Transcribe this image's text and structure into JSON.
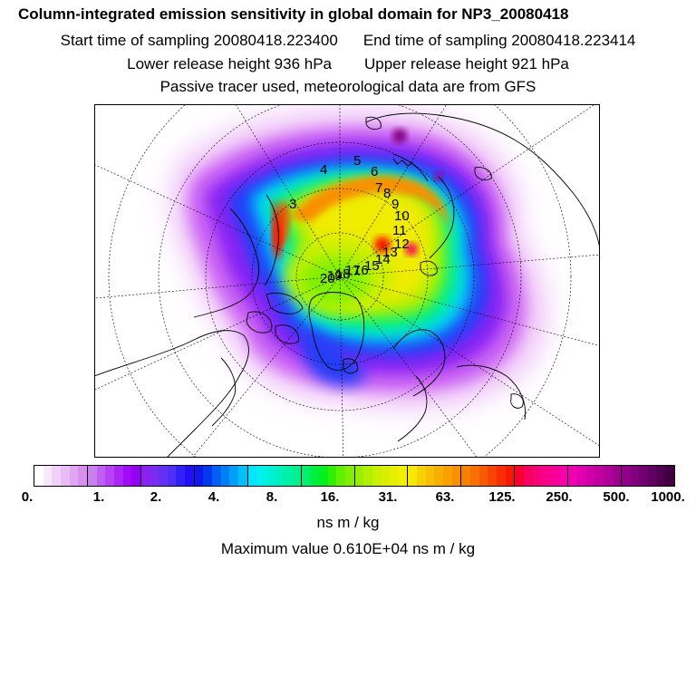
{
  "header": {
    "title": "Column-integrated emission sensitivity in global domain for NP3_20080418",
    "start_time": "Start time of sampling 20080418.223400",
    "end_time": "End time of sampling 20080418.223414",
    "lower_height": "Lower release height  936 hPa",
    "upper_height": "Upper release height  921 hPa",
    "tracer_note": "Passive tracer used, meteorological data are from GFS"
  },
  "map": {
    "projection": "north polar stereographic",
    "track_labels": [
      "3",
      "4",
      "5",
      "6",
      "7",
      "8",
      "9",
      "10",
      "11",
      "12",
      "13",
      "14",
      "15",
      "16",
      "17",
      "18",
      "19",
      "20"
    ]
  },
  "colorbar": {
    "tick_labels": [
      "0.",
      "1.",
      "2.",
      "4.",
      "8.",
      "16.",
      "31.",
      "63.",
      "125.",
      "250.",
      "500.",
      "1000."
    ],
    "colors": [
      [
        "#ffffff",
        "#f7e8fb",
        "#f0d2f8",
        "#e8bcf5",
        "#e0a6f2",
        "#d890ef"
      ],
      [
        "#c97ff0",
        "#c060f2",
        "#b642f4",
        "#ad24f6",
        "#a10cf8",
        "#9400f8"
      ],
      [
        "#8c22f0",
        "#7a2cf2",
        "#6430f4",
        "#4c30f6",
        "#3220f8",
        "#2010f8"
      ],
      [
        "#1018f0",
        "#0038f0",
        "#0060f4",
        "#0080f6",
        "#00a0f8",
        "#00c0fa"
      ],
      [
        "#00e4fc",
        "#00f0ee",
        "#00f0d8",
        "#00f0c0",
        "#00f0a8",
        "#00f090"
      ],
      [
        "#00f070",
        "#00f040",
        "#00f020",
        "#30f000",
        "#60f000",
        "#80f000"
      ],
      [
        "#98f000",
        "#b0f000",
        "#c8f000",
        "#d8f000",
        "#e4f000",
        "#f0f000"
      ],
      [
        "#f8e800",
        "#f8d000",
        "#f8c000",
        "#f8b000",
        "#f8a000",
        "#f89000"
      ],
      [
        "#f88000",
        "#f87000",
        "#f85a00",
        "#f84400",
        "#f82e00",
        "#f81800"
      ],
      [
        "#f80030",
        "#f80060",
        "#f80078",
        "#f80088",
        "#f80098",
        "#f800a8"
      ],
      [
        "#f000b0",
        "#e000b0",
        "#d000a8",
        "#c000a0",
        "#b00098",
        "#a00090"
      ],
      [
        "#900088",
        "#800080",
        "#700070",
        "#600060",
        "#500050",
        "#400040"
      ]
    ]
  },
  "units": "ns m / kg",
  "max_value": "Maximum value  0.610E+04 ns m / kg"
}
